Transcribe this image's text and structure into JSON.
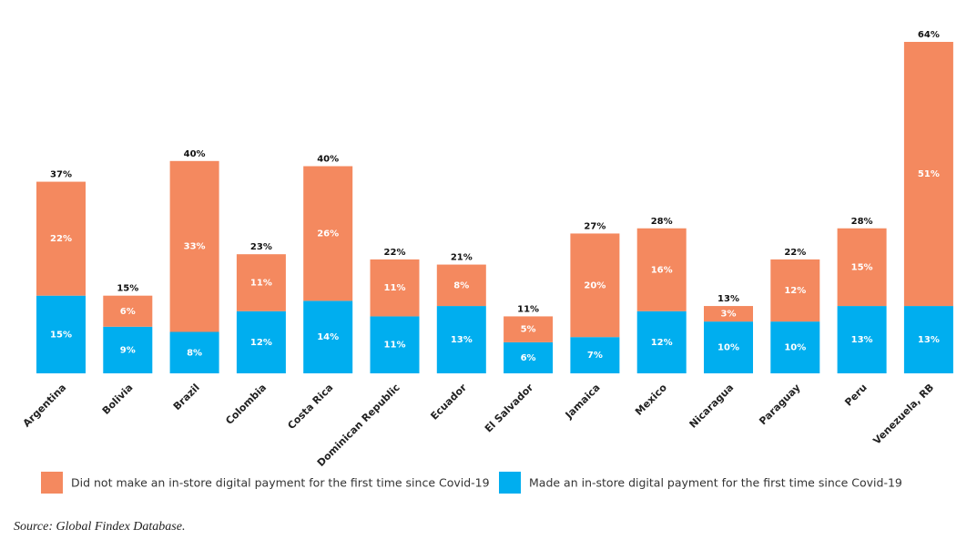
{
  "chart_data": {
    "type": "stacked_bar",
    "categories": [
      "Argentina",
      "Bolivia",
      "Brazil",
      "Colombia",
      "Costa Rica",
      "Dominican Republic",
      "Ecuador",
      "El Salvador",
      "Jamaica",
      "Mexico",
      "Nicaragua",
      "Paraguay",
      "Peru",
      "Venezuela, RB"
    ],
    "series": [
      {
        "name": "Made an in-store digital payment for the first time since Covid-19",
        "color": "#00aeef",
        "values": [
          15,
          9,
          8,
          12,
          14,
          11,
          13,
          6,
          7,
          12,
          10,
          10,
          13,
          13
        ],
        "value_labels": [
          "15%",
          "9%",
          "8%",
          "12%",
          "14%",
          "11%",
          "13%",
          "6%",
          "7%",
          "12%",
          "10%",
          "10%",
          "13%",
          "13%"
        ]
      },
      {
        "name": "Did not make an in-store digital payment for the first time since Covid-19",
        "color": "#f4895f",
        "values": [
          22,
          6,
          33,
          11,
          26,
          11,
          8,
          5,
          20,
          16,
          3,
          12,
          15,
          51
        ],
        "value_labels": [
          "22%",
          "6%",
          "33%",
          "11%",
          "26%",
          "11%",
          "8%",
          "5%",
          "20%",
          "16%",
          "3%",
          "12%",
          "15%",
          "51%"
        ]
      }
    ],
    "totals": [
      37,
      15,
      40,
      23,
      40,
      22,
      21,
      11,
      27,
      28,
      13,
      22,
      28,
      64
    ],
    "total_labels": [
      "37%",
      "15%",
      "40%",
      "23%",
      "40%",
      "22%",
      "21%",
      "11%",
      "27%",
      "28%",
      "13%",
      "22%",
      "28%",
      "64%"
    ],
    "legend_order": [
      1,
      0
    ],
    "source": "Source: Global Findex Database."
  }
}
